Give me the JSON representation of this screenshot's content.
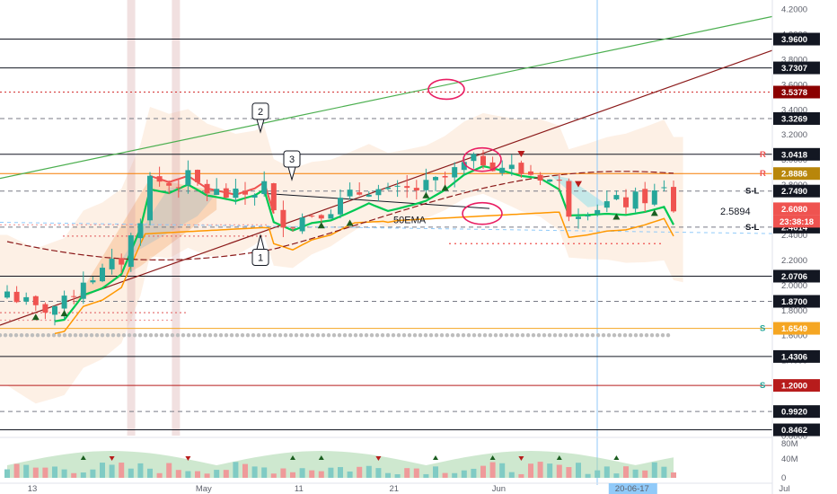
{
  "chart_data": {
    "type": "candlestick",
    "y_axis": {
      "min": 0.8,
      "max": 4.2,
      "position": "right",
      "ticks": [
        "4.2000",
        "4.0000",
        "3.8000",
        "3.6000",
        "3.4000",
        "3.2000",
        "3.0000",
        "2.8000",
        "2.6000",
        "2.4000",
        "2.2000",
        "2.0000",
        "1.8000",
        "1.6000",
        "1.4000",
        "1.2000",
        "1.0000",
        "0.8000"
      ]
    },
    "x_axis": {
      "labels": [
        {
          "text": "13",
          "day": 0
        },
        {
          "text": "May",
          "day": 18
        },
        {
          "text": "11",
          "day": 28
        },
        {
          "text": "21",
          "day": 38
        },
        {
          "text": "Jun",
          "day": 49
        },
        {
          "text": "20-06-17",
          "day": 63,
          "highlight": true
        },
        {
          "text": "Jul",
          "day": 79
        }
      ]
    },
    "price_labels": [
      {
        "value": 3.96,
        "text": "3.9600",
        "bg": "#131722"
      },
      {
        "value": 3.7307,
        "text": "3.7307",
        "bg": "#131722"
      },
      {
        "value": 3.5378,
        "text": "3.5378",
        "bg": "#8b0000"
      },
      {
        "value": 3.3269,
        "text": "3.3269",
        "bg": "#131722"
      },
      {
        "value": 3.0418,
        "text": "3.0418",
        "bg": "#131722"
      },
      {
        "value": 2.8886,
        "text": "2.8886",
        "bg": "#b8860b"
      },
      {
        "value": 2.749,
        "text": "2.7490",
        "bg": "#131722"
      },
      {
        "value": 2.608,
        "text": "2.6080",
        "bg": "#ef5350"
      },
      {
        "value": 2.4614,
        "text": "2.4614",
        "bg": "#131722"
      },
      {
        "value": 2.0706,
        "text": "2.0706",
        "bg": "#131722"
      },
      {
        "value": 1.87,
        "text": "1.8700",
        "bg": "#131722"
      },
      {
        "value": 1.6549,
        "text": "1.6549",
        "bg": "#f5a623"
      },
      {
        "value": 1.4306,
        "text": "1.4306",
        "bg": "#131722"
      },
      {
        "value": 1.2,
        "text": "1.2000",
        "bg": "#b71c1c"
      },
      {
        "value": 0.992,
        "text": "0.9920",
        "bg": "#131722"
      },
      {
        "value": 0.8462,
        "text": "0.8462",
        "bg": "#131722"
      }
    ],
    "countdown": "23:38:18",
    "level_tags": [
      {
        "value": 3.0418,
        "text": "R",
        "color": "#ef5350"
      },
      {
        "value": 2.8886,
        "text": "R",
        "color": "#ef5350"
      },
      {
        "value": 2.749,
        "text": "S-L",
        "color": "#131722"
      },
      {
        "value": 2.4614,
        "text": "S-L",
        "color": "#131722"
      },
      {
        "value": 1.6549,
        "text": "S",
        "color": "#26a69a"
      },
      {
        "value": 1.2,
        "text": "S",
        "color": "#26a69a"
      }
    ],
    "horizontal_levels": [
      {
        "value": 3.96,
        "style": "solid",
        "color": "#131722"
      },
      {
        "value": 3.7307,
        "style": "solid",
        "color": "#131722"
      },
      {
        "value": 3.5378,
        "style": "dotted",
        "color": "#d32f2f"
      },
      {
        "value": 3.3269,
        "style": "dashed",
        "color": "#787b86"
      },
      {
        "value": 3.0418,
        "style": "solid",
        "color": "#131722"
      },
      {
        "value": 2.8886,
        "style": "solid",
        "color": "#f57c00"
      },
      {
        "value": 2.749,
        "style": "dashed",
        "color": "#787b86"
      },
      {
        "value": 2.4614,
        "style": "dashed",
        "color": "#787b86"
      },
      {
        "value": 2.0706,
        "style": "solid",
        "color": "#131722"
      },
      {
        "value": 1.87,
        "style": "dashed",
        "color": "#787b86"
      },
      {
        "value": 1.6549,
        "style": "solid",
        "color": "#f5a623"
      },
      {
        "value": 1.4306,
        "style": "solid",
        "color": "#131722"
      },
      {
        "value": 1.2,
        "style": "solid",
        "color": "#b71c1c"
      },
      {
        "value": 0.992,
        "style": "dashed",
        "color": "#787b86"
      },
      {
        "value": 0.8462,
        "style": "solid",
        "color": "#131722"
      }
    ],
    "annotations": [
      {
        "text": "1"
      },
      {
        "text": "2"
      },
      {
        "text": "3"
      },
      {
        "text": "50EMA"
      },
      {
        "text": "2.5894"
      }
    ],
    "volume_axis": {
      "ticks": [
        "80M",
        "40M",
        "0"
      ]
    },
    "colors": {
      "up": "#26a69a",
      "down": "#ef5350",
      "ema_fast": "#00c853",
      "ema_slow": "#ff9800",
      "ema_200": "#8b1a1a",
      "band": "#fbe3cf"
    }
  }
}
